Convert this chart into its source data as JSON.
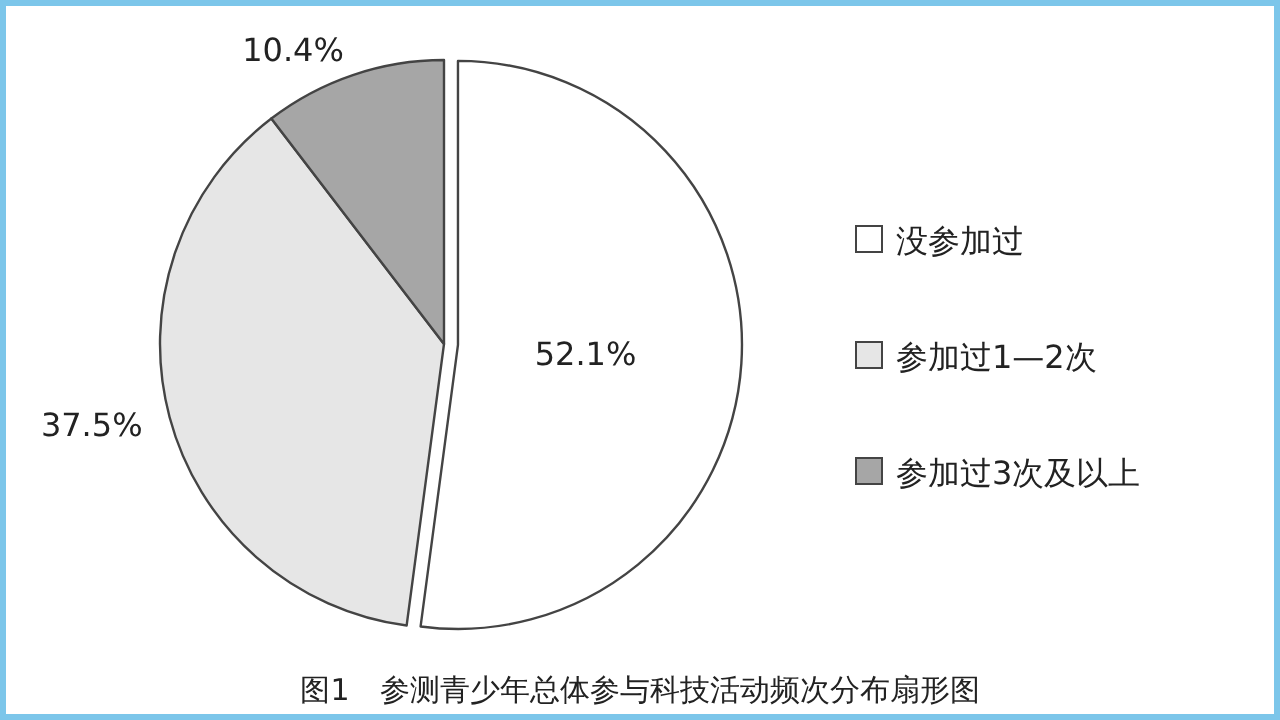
{
  "chart_data": {
    "type": "pie",
    "title": "图1　参测青少年总体参与科技活动频次分布扇形图",
    "categories": [
      "没参加过",
      "参加过1—2次",
      "参加过3次及以上"
    ],
    "values": [
      52.1,
      37.5,
      10.4
    ],
    "colors": [
      "#ffffff",
      "#e6e6e6",
      "#a6a6a6"
    ],
    "value_labels": [
      "52.1%",
      "37.5%",
      "10.4%"
    ],
    "legend": "right"
  }
}
